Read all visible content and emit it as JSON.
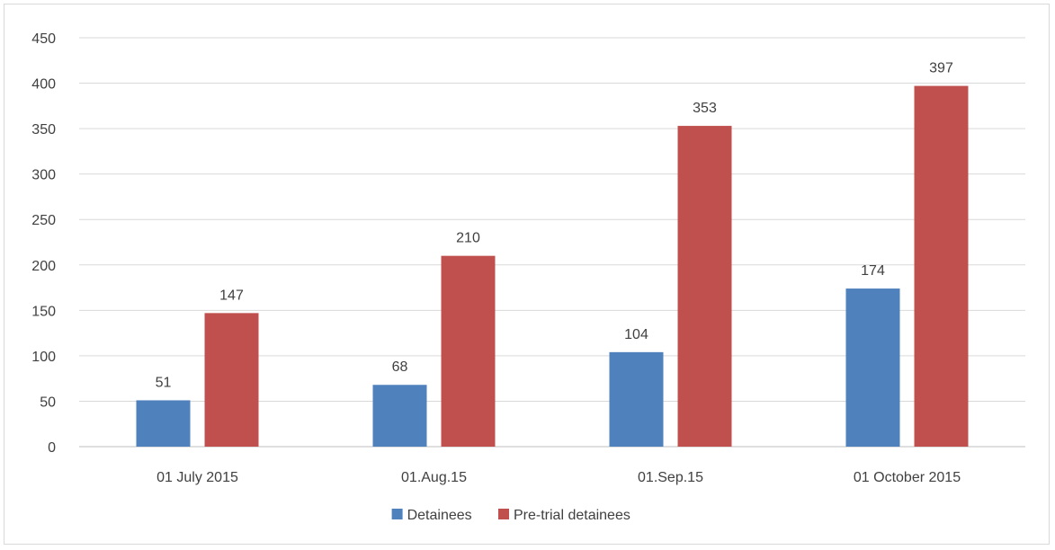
{
  "chart_data": {
    "type": "bar",
    "categories": [
      "01 July 2015",
      "01.Aug.15",
      "01.Sep.15",
      "01 October 2015"
    ],
    "series": [
      {
        "name": "Detainees",
        "color": "#4f81bd",
        "values": [
          51,
          68,
          104,
          174
        ]
      },
      {
        "name": "Pre-trial detainees",
        "color": "#c0504d",
        "values": [
          147,
          210,
          353,
          397
        ]
      }
    ],
    "y_ticks": [
      "0",
      "50",
      "100",
      "150",
      "200",
      "250",
      "300",
      "350",
      "400",
      "450"
    ],
    "ylim": [
      0,
      450
    ],
    "grid": true,
    "legend_position": "bottom",
    "title": "",
    "xlabel": "",
    "ylabel": ""
  }
}
